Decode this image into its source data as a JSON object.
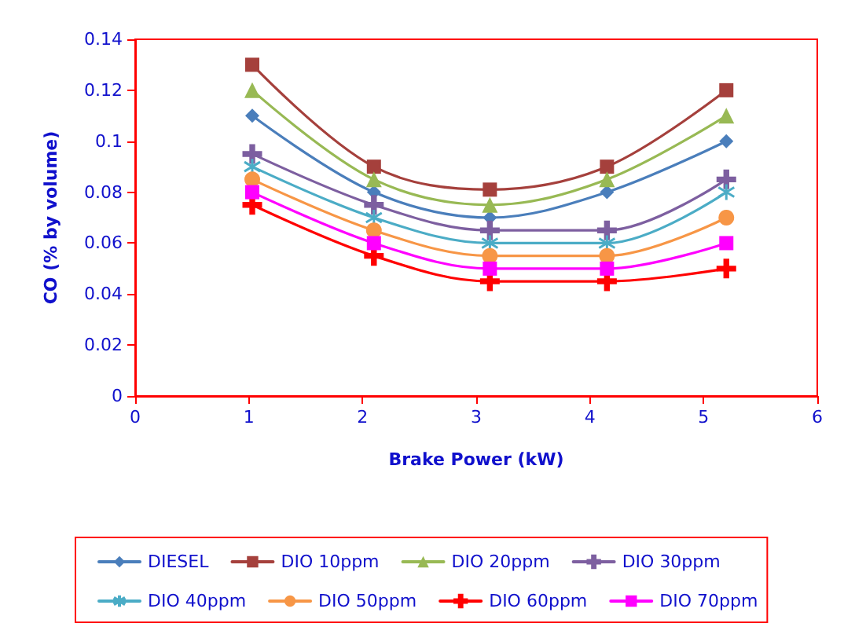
{
  "chart_data": {
    "type": "line",
    "xlabel": "Brake Power (kW)",
    "ylabel": "CO (% by volume)",
    "xlim": [
      0,
      6
    ],
    "xticks": [
      0,
      1,
      2,
      3,
      4,
      5,
      6
    ],
    "ylim": [
      0,
      0.14
    ],
    "yticks": [
      0,
      0.02,
      0.04,
      0.06,
      0.08,
      0.1,
      0.12,
      0.14
    ],
    "grid": false,
    "legend": "bottom",
    "line_style": "solid",
    "x": [
      1.03,
      2.1,
      3.12,
      4.15,
      5.2
    ],
    "series": [
      {
        "name": "DIESEL",
        "color": "#4a7ebb",
        "marker": "diamond",
        "values": [
          0.11,
          0.08,
          0.07,
          0.08,
          0.1
        ]
      },
      {
        "name": "DIO 10ppm",
        "color": "#a5403c",
        "marker": "square",
        "values": [
          0.13,
          0.09,
          0.081,
          0.09,
          0.12
        ]
      },
      {
        "name": "DIO 20ppm",
        "color": "#98b954",
        "marker": "triangle",
        "values": [
          0.12,
          0.085,
          0.075,
          0.085,
          0.11
        ]
      },
      {
        "name": "DIO 30ppm",
        "color": "#7d5fa0",
        "marker": "cross",
        "values": [
          0.095,
          0.075,
          0.065,
          0.065,
          0.085
        ]
      },
      {
        "name": "DIO 40ppm",
        "color": "#4bacc6",
        "marker": "star",
        "values": [
          0.09,
          0.07,
          0.06,
          0.06,
          0.08
        ]
      },
      {
        "name": "DIO 50ppm",
        "color": "#f79646",
        "marker": "circle",
        "values": [
          0.085,
          0.065,
          0.055,
          0.055,
          0.07
        ]
      },
      {
        "name": "DIO 60ppm",
        "color": "#ff0000",
        "marker": "cross",
        "values": [
          0.075,
          0.055,
          0.045,
          0.045,
          0.05
        ]
      },
      {
        "name": "DIO 70ppm",
        "color": "#ff00ff",
        "marker": "square",
        "values": [
          0.08,
          0.06,
          0.05,
          0.05,
          0.06
        ]
      }
    ]
  }
}
